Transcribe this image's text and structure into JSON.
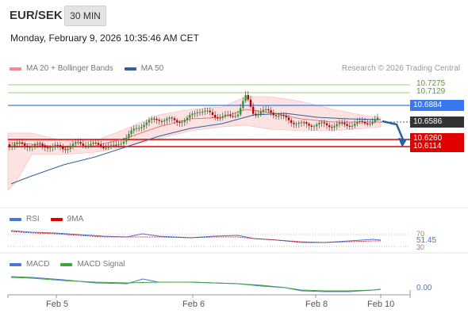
{
  "header": {
    "symbol": "EUR/SEK",
    "timeframe": "30 MIN"
  },
  "timestamp": "Monday, February 9, 2026 10:35:46 AM CET",
  "main_legend": [
    {
      "label": "MA 20 + Bollinger Bands",
      "color": "#f48a8a"
    },
    {
      "label": "MA 50",
      "color": "#2f5f9f"
    }
  ],
  "research": "Research © 2026 Trading Central",
  "levels": {
    "r2": "10.7275",
    "r1": "10.7129",
    "pivot": "10.6884",
    "last": "10.6586",
    "s1": "10.6260",
    "s2": "10.6114"
  },
  "colors": {
    "resistance": "#7ac142",
    "pivot": "#3a78f0",
    "support": "#e00000",
    "last": "#333333"
  },
  "rsi_legend": [
    {
      "label": "RSI",
      "color": "#4a76d4"
    },
    {
      "label": "9MA",
      "color": "#e00000"
    }
  ],
  "rsi_levels": {
    "upper": "70",
    "value": "51.45",
    "lower": "30"
  },
  "macd_legend": [
    {
      "label": "MACD",
      "color": "#4a76d4"
    },
    {
      "label": "MACD Signal",
      "color": "#3aa53a"
    }
  ],
  "macd_value": "0.00",
  "x_labels": [
    "Feb 5",
    "Feb 6",
    "Feb 8",
    "Feb 10"
  ]
}
